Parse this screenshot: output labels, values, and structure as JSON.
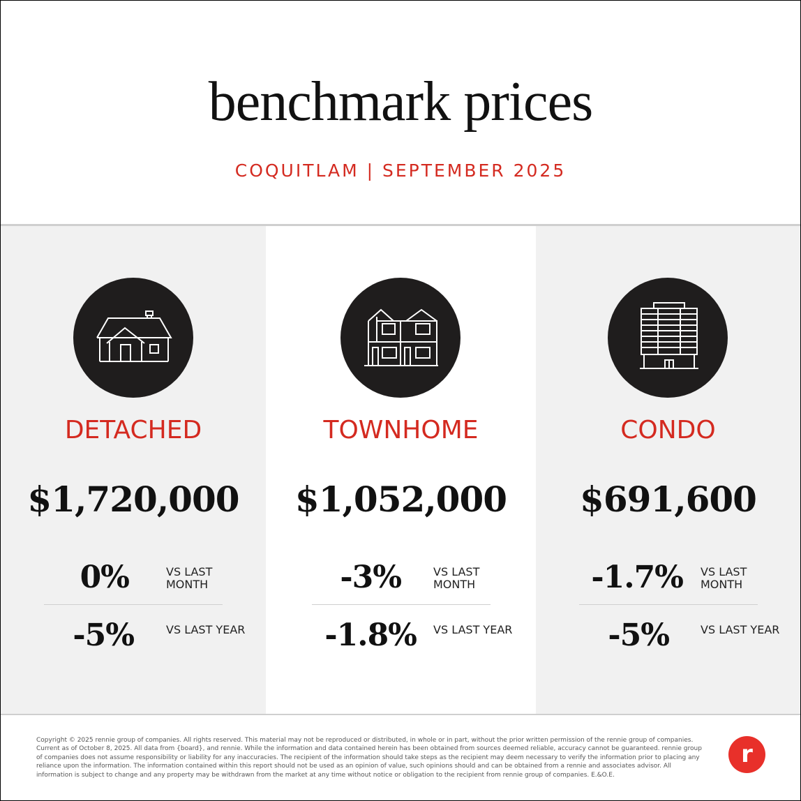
{
  "header": {
    "title": "benchmark prices",
    "subtitle": "COQUITLAM | SEPTEMBER 2025"
  },
  "accent_color": "#d42a20",
  "columns": [
    {
      "icon": "detached-house-icon",
      "type": "DETACHED",
      "price": "$1,720,000",
      "month_change": "0%",
      "month_label": "VS LAST MONTH",
      "year_change": "-5%",
      "year_label": "VS LAST YEAR"
    },
    {
      "icon": "townhome-icon",
      "type": "TOWNHOME",
      "price": "$1,052,000",
      "month_change": "-3%",
      "month_label": "VS LAST MONTH",
      "year_change": "-1.8%",
      "year_label": "VS LAST YEAR"
    },
    {
      "icon": "condo-building-icon",
      "type": "CONDO",
      "price": "$691,600",
      "month_change": "-1.7%",
      "month_label": "VS LAST MONTH",
      "year_change": "-5%",
      "year_label": "VS LAST YEAR"
    }
  ],
  "footer": {
    "disclaimer": "Copyright © 2025 rennie group of companies. All rights reserved. This material may not be reproduced or distributed, in whole or in part, without the prior written permission of the rennie group of companies. Current as of October 8, 2025. All data from {board}, and rennie. While the information and data contained herein has been obtained from sources deemed reliable, accuracy cannot be guaranteed. rennie group of companies does not assume responsibility or liability for any inaccuracies. The recipient of the information should take steps as the recipient may deem necessary to verify the information prior to placing any reliance upon the information. The information contained within this report should not be used as an opinion of value, such opinions should and can be obtained from a rennie and associates advisor. All information is subject to change and any property may be withdrawn from the market at any time without notice or obligation to the recipient from rennie group of companies. E.&O.E.",
    "logo": "r"
  }
}
